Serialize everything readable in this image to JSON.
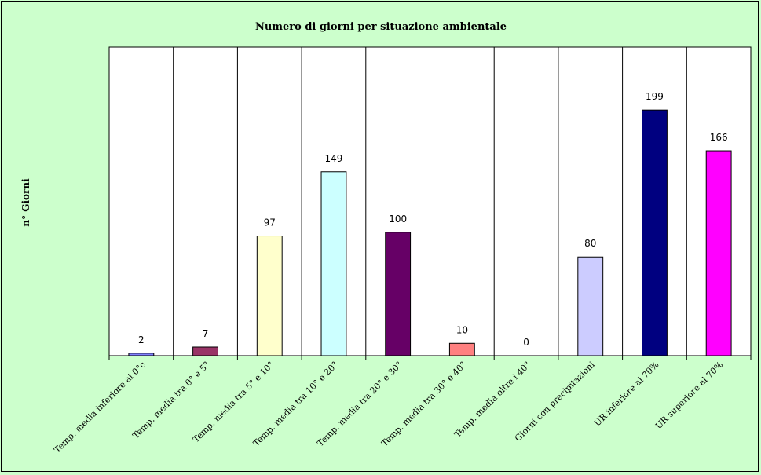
{
  "chart_data": {
    "type": "bar",
    "title": "Numero di giorni per situazione ambientale",
    "ylabel": "n° Giorni",
    "xlabel": "",
    "ylim": [
      0,
      250
    ],
    "grid": "vertical category separators",
    "legend": "none",
    "categories": [
      "Temp. media inferiore ai 0°c",
      "Temp. media tra 0° e 5°",
      "Temp. media tra 5° e 10°",
      "Temp. media tra 10° e 20°",
      "Temp. media tra 20° e 30°",
      "Temp. media tra 30° e 40°",
      "Temp. media oltre i 40°",
      "Giorni con precipitazioni",
      "UR  inferiore al 70%",
      "UR superiore al 70%"
    ],
    "values": [
      2,
      7,
      97,
      149,
      100,
      10,
      0,
      80,
      199,
      166
    ],
    "colors": [
      "#8080ff",
      "#993366",
      "#ffffcc",
      "#ccffff",
      "#660066",
      "#ff8080",
      "#0066cc",
      "#ccccff",
      "#000080",
      "#ff00ff"
    ],
    "background": "#ccffcc",
    "plot_background": "#ffffff"
  }
}
